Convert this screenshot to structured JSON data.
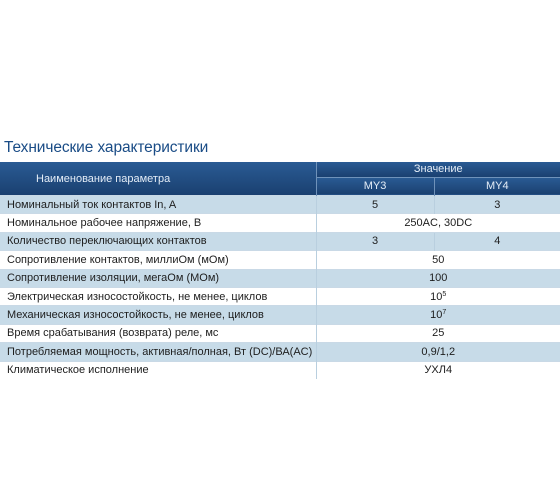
{
  "section_title": "Технические характеристики",
  "table": {
    "header": {
      "param": "Наименование параметра",
      "value": "Значение",
      "col_a": "MY3",
      "col_b": "MY4"
    },
    "rows": [
      {
        "name": "Номинальный ток контактов In, A",
        "a": "5",
        "b": "3"
      },
      {
        "name": "Номинальное рабочее напряжение, В",
        "value": "250AC, 30DC"
      },
      {
        "name": "Количество переключающих контактов",
        "a": "3",
        "b": "4"
      },
      {
        "name": "Сопротивление контактов, миллиОм (мОм)",
        "value": "50"
      },
      {
        "name": "Сопротивление изоляции, мегаОм (МОм)",
        "value": "100"
      },
      {
        "name": "Электрическая износостойкость, не менее, циклов",
        "value_base": "10",
        "value_exp": "5"
      },
      {
        "name": "Механическая износостойкость, не менее, циклов",
        "value_base": "10",
        "value_exp": "7"
      },
      {
        "name": "Время срабатывания (возврата) реле, мс",
        "value": "25"
      },
      {
        "name": "Потребляемая мощность, активная/полная, Вт (DC)/ВА(AC)",
        "value": "0,9/1,2"
      },
      {
        "name": "Климатическое исполнение",
        "value": "УХЛ4"
      }
    ]
  }
}
